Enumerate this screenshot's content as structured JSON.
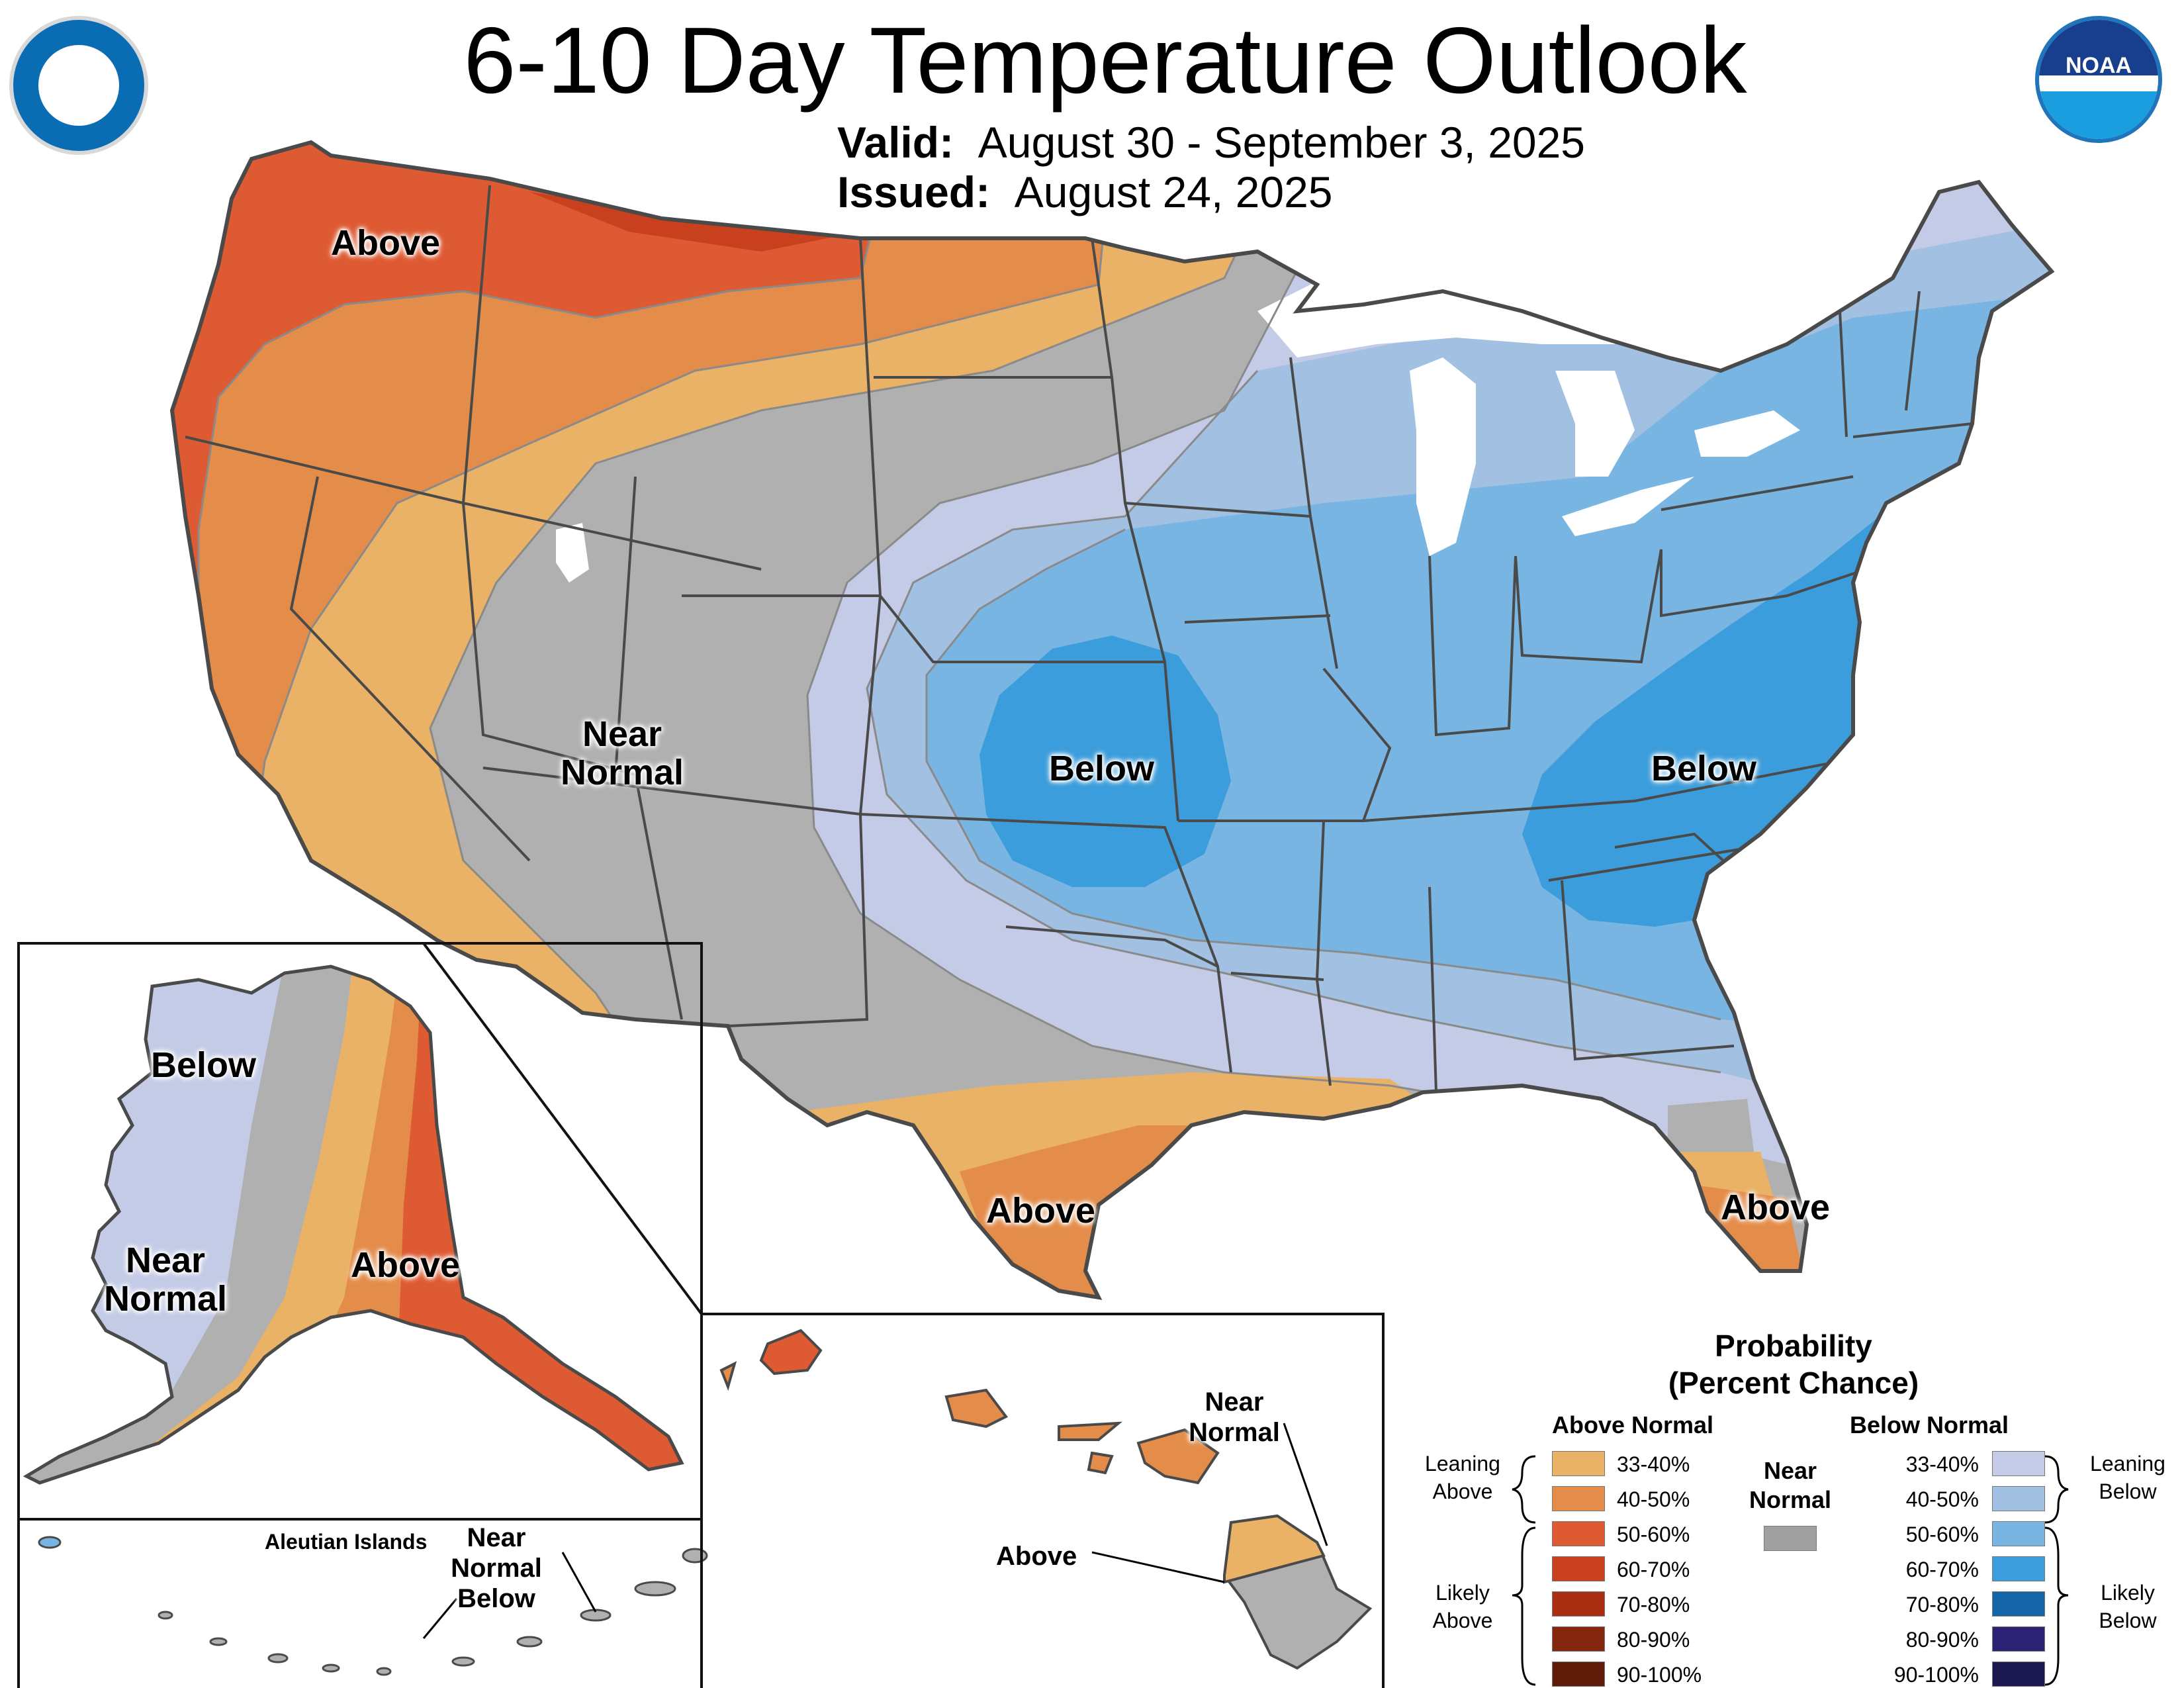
{
  "header": {
    "title": "6-10 Day Temperature Outlook",
    "valid_label": "Valid:",
    "valid_value": "August 30 - September 3, 2025",
    "issued_label": "Issued:",
    "issued_value": "August 24, 2025"
  },
  "logos": {
    "left": "department-of-commerce-seal-icon",
    "right": "noaa-logo-icon",
    "noaa_text": "NOAA"
  },
  "conus_labels": {
    "northwest": "Above",
    "rockies_line1": "Near",
    "rockies_line2": "Normal",
    "plains": "Below",
    "southeast": "Below",
    "texas": "Above",
    "florida": "Above"
  },
  "alaska_labels": {
    "west": "Below",
    "central_line1": "Near",
    "central_line2": "Normal",
    "east": "Above"
  },
  "aleutian_labels": {
    "title": "Aleutian Islands",
    "line1": "Near",
    "line2": "Normal",
    "line3": "Below"
  },
  "hawaii_labels": {
    "ne_line1": "Near",
    "ne_line2": "Normal",
    "above": "Above"
  },
  "legend": {
    "title_line1": "Probability",
    "title_line2": "(Percent Chance)",
    "above_header": "Above Normal",
    "below_header": "Below Normal",
    "near_line1": "Near",
    "near_line2": "Normal",
    "near_color": "#a0a0a0",
    "above": [
      {
        "label": "33-40%",
        "color": "#e9b266"
      },
      {
        "label": "40-50%",
        "color": "#e48c4a"
      },
      {
        "label": "50-60%",
        "color": "#de5a32"
      },
      {
        "label": "60-70%",
        "color": "#c8401e"
      },
      {
        "label": "70-80%",
        "color": "#aa2f12"
      },
      {
        "label": "80-90%",
        "color": "#85260e"
      },
      {
        "label": "90-100%",
        "color": "#5f1a08"
      }
    ],
    "below": [
      {
        "label": "33-40%",
        "color": "#c3cbe6"
      },
      {
        "label": "40-50%",
        "color": "#a2c0e1"
      },
      {
        "label": "50-60%",
        "color": "#78b5e3"
      },
      {
        "label": "60-70%",
        "color": "#3b9ddb"
      },
      {
        "label": "70-80%",
        "color": "#1464a8"
      },
      {
        "label": "80-90%",
        "color": "#2c2375"
      },
      {
        "label": "90-100%",
        "color": "#1c1852"
      }
    ],
    "leaning_above_line1": "Leaning",
    "leaning_above_line2": "Above",
    "likely_above_line1": "Likely",
    "likely_above_line2": "Above",
    "leaning_below_line1": "Leaning",
    "leaning_below_line2": "Below",
    "likely_below_line1": "Likely",
    "likely_below_line2": "Below"
  }
}
